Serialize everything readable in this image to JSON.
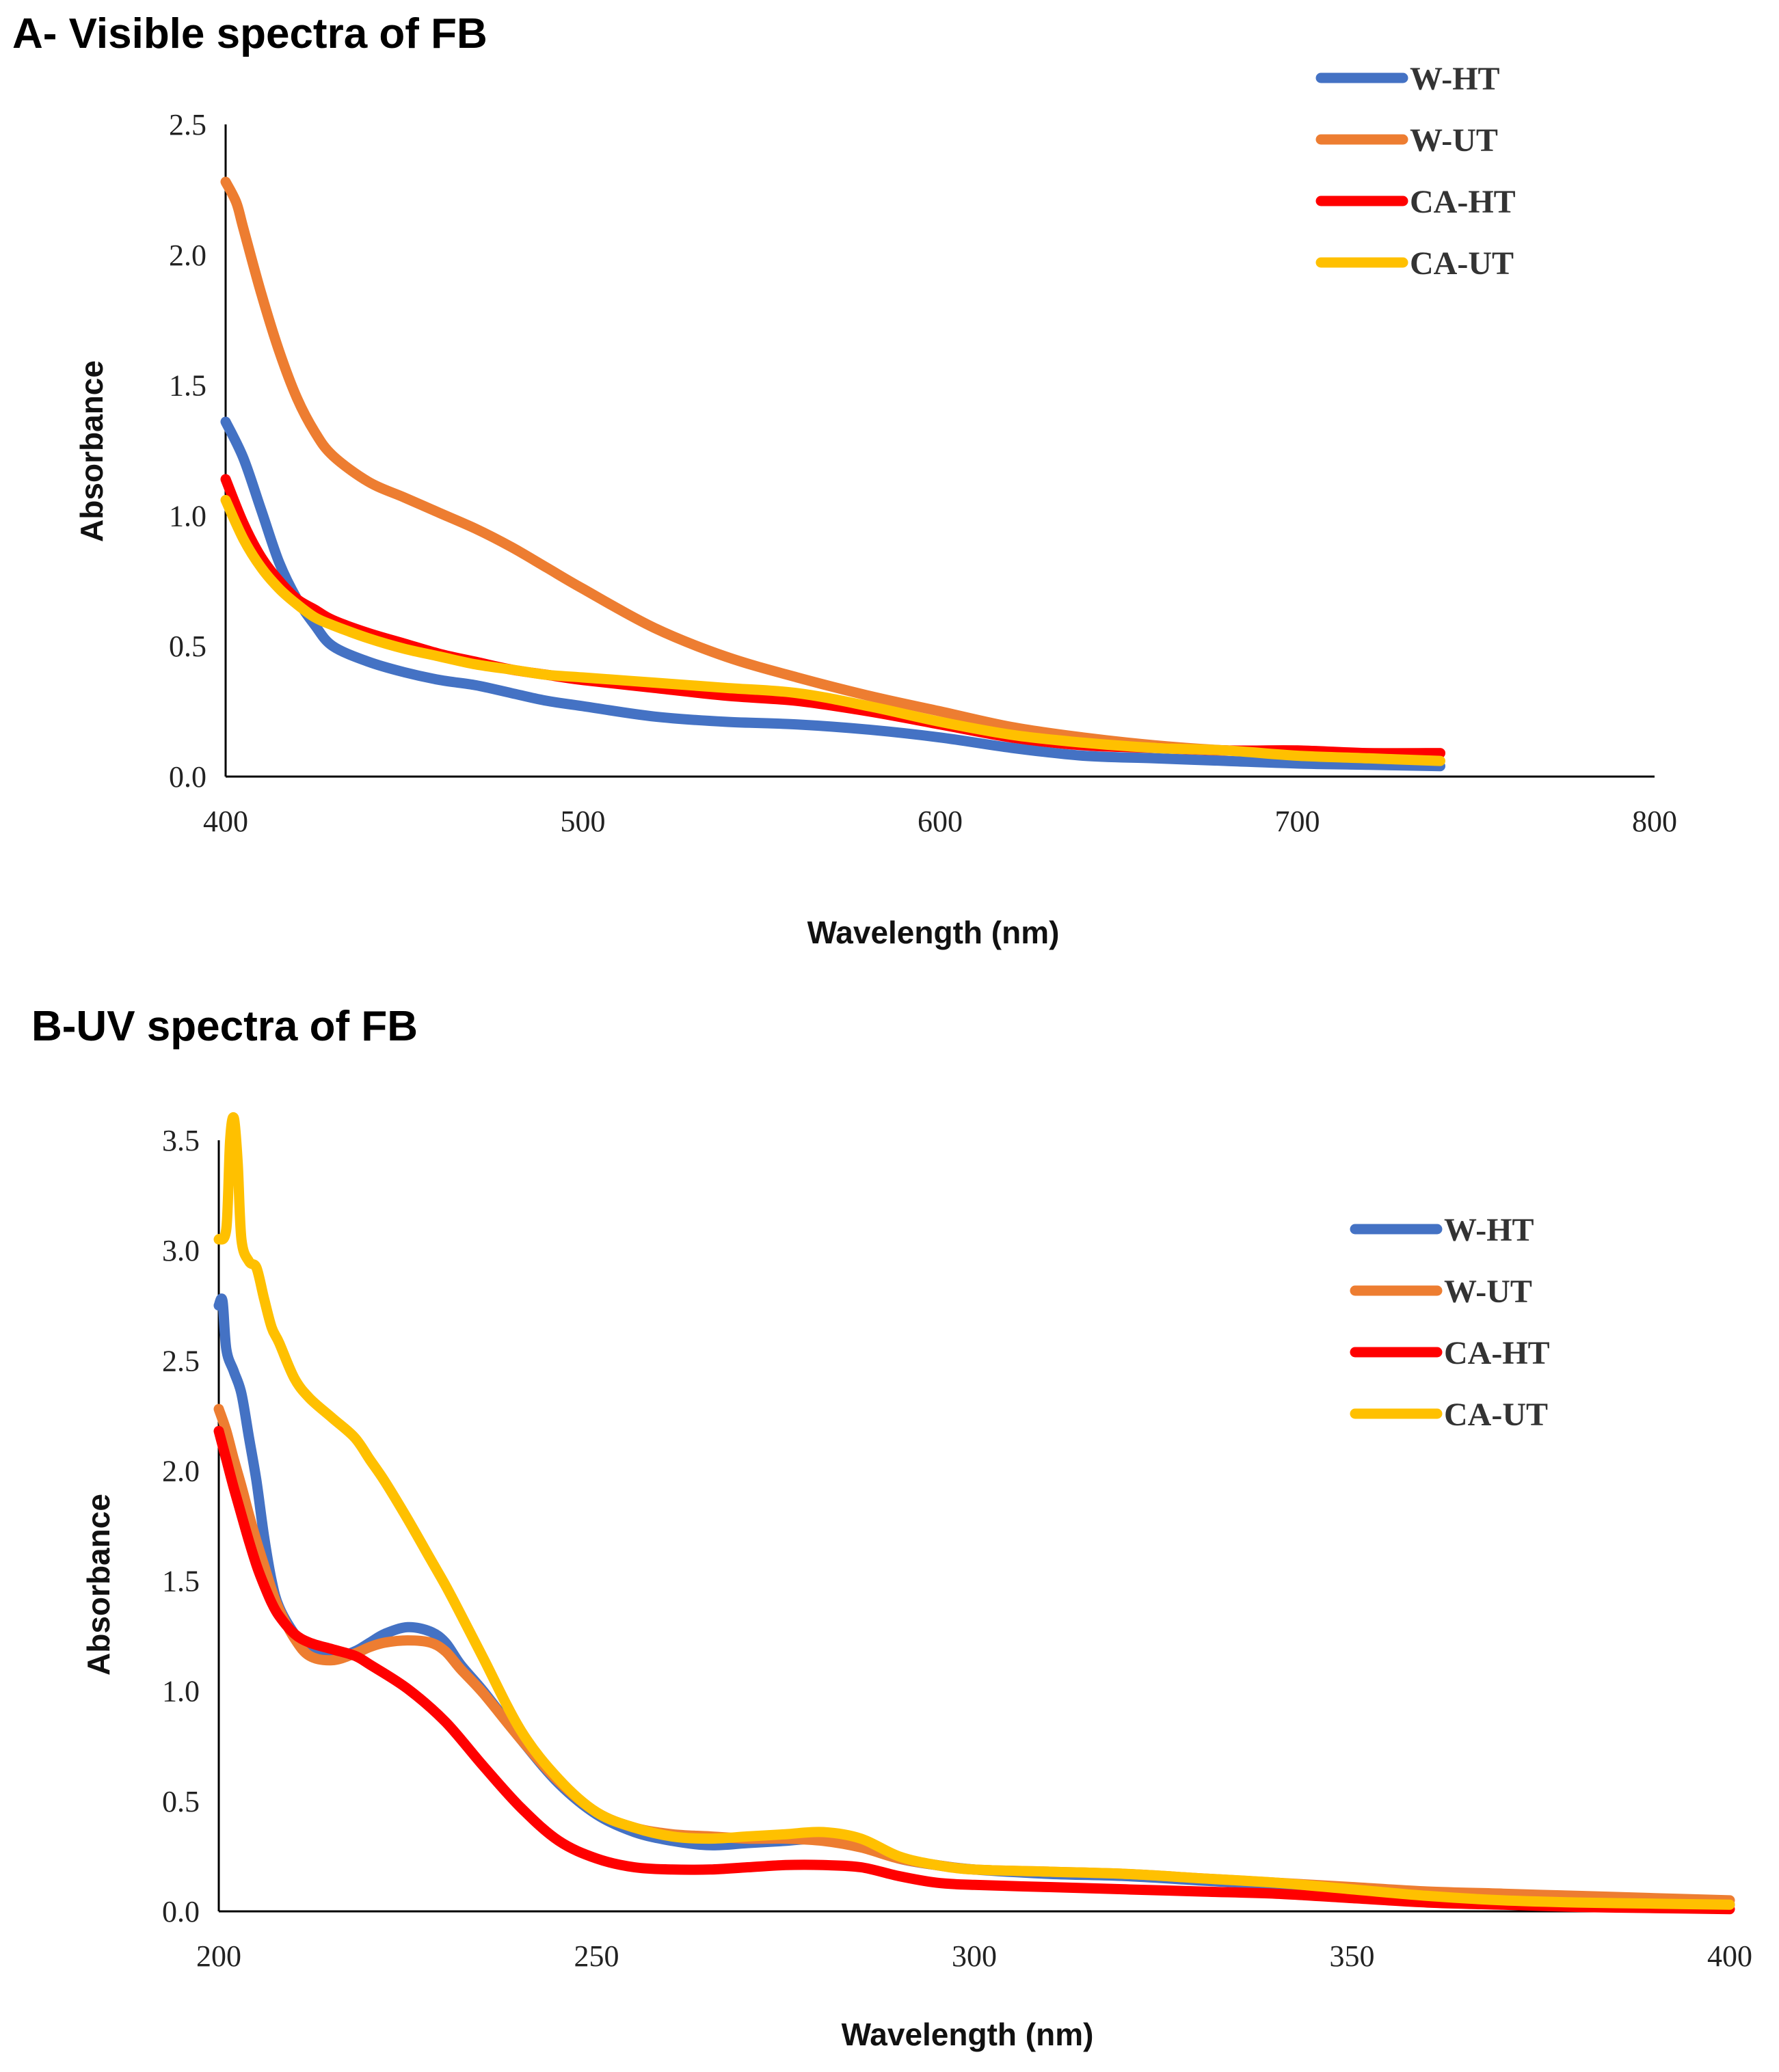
{
  "chart_data": [
    {
      "type": "line",
      "title": "A- Visible spectra of FB",
      "xlabel": "Wavelength (nm)",
      "ylabel": "Absorbance",
      "xlim": [
        400,
        800
      ],
      "ylim": [
        0,
        2.5
      ],
      "xticks": [
        "400",
        "500",
        "600",
        "700",
        "800"
      ],
      "yticks": [
        "0.0",
        "0.5",
        "1.0",
        "1.5",
        "2.0",
        "2.5"
      ],
      "xtick_values": [
        400,
        500,
        600,
        700,
        800
      ],
      "ytick_values": [
        0,
        0.5,
        1.0,
        1.5,
        2.0,
        2.5
      ],
      "grid": false,
      "legend_position": "top-right",
      "series": [
        {
          "name": "W-HT",
          "color": "#4472C4",
          "x": [
            400,
            405,
            410,
            415,
            420,
            425,
            430,
            440,
            450,
            460,
            470,
            480,
            490,
            500,
            520,
            540,
            560,
            580,
            600,
            620,
            640,
            660,
            680,
            700,
            720,
            740
          ],
          "y": [
            1.36,
            1.22,
            1.02,
            0.82,
            0.68,
            0.58,
            0.5,
            0.44,
            0.4,
            0.37,
            0.35,
            0.32,
            0.29,
            0.27,
            0.23,
            0.21,
            0.2,
            0.18,
            0.15,
            0.11,
            0.08,
            0.07,
            0.06,
            0.05,
            0.045,
            0.04
          ]
        },
        {
          "name": "W-UT",
          "color": "#ED7D31",
          "x": [
            400,
            403,
            405,
            410,
            415,
            420,
            425,
            430,
            440,
            450,
            460,
            470,
            480,
            490,
            500,
            520,
            540,
            560,
            580,
            600,
            620,
            640,
            660,
            680,
            700,
            720,
            740
          ],
          "y": [
            2.28,
            2.2,
            2.1,
            1.85,
            1.63,
            1.45,
            1.32,
            1.23,
            1.13,
            1.07,
            1.01,
            0.95,
            0.88,
            0.8,
            0.72,
            0.57,
            0.46,
            0.38,
            0.31,
            0.25,
            0.19,
            0.15,
            0.12,
            0.1,
            0.09,
            0.09,
            0.09
          ]
        },
        {
          "name": "CA-HT",
          "color": "#FF0000",
          "x": [
            400,
            405,
            410,
            415,
            420,
            425,
            430,
            440,
            450,
            460,
            470,
            480,
            490,
            500,
            520,
            540,
            560,
            580,
            600,
            620,
            640,
            660,
            680,
            700,
            720,
            740
          ],
          "y": [
            1.14,
            0.97,
            0.84,
            0.75,
            0.68,
            0.64,
            0.6,
            0.55,
            0.51,
            0.47,
            0.44,
            0.41,
            0.39,
            0.37,
            0.34,
            0.31,
            0.29,
            0.25,
            0.2,
            0.15,
            0.12,
            0.11,
            0.1,
            0.1,
            0.09,
            0.09
          ]
        },
        {
          "name": "CA-UT",
          "color": "#FFC000",
          "x": [
            400,
            405,
            410,
            415,
            420,
            425,
            430,
            440,
            450,
            460,
            470,
            480,
            490,
            500,
            520,
            540,
            560,
            580,
            600,
            620,
            640,
            660,
            680,
            700,
            720,
            740
          ],
          "y": [
            1.06,
            0.91,
            0.8,
            0.72,
            0.66,
            0.61,
            0.58,
            0.53,
            0.49,
            0.46,
            0.43,
            0.41,
            0.39,
            0.38,
            0.36,
            0.34,
            0.32,
            0.27,
            0.21,
            0.16,
            0.13,
            0.11,
            0.1,
            0.08,
            0.07,
            0.06
          ]
        }
      ]
    },
    {
      "type": "line",
      "title": "B-UV spectra of FB",
      "xlabel": "Wavelength (nm)",
      "ylabel": "Absorbance",
      "xlim": [
        200,
        400
      ],
      "ylim": [
        0,
        3.5
      ],
      "xticks": [
        "200",
        "250",
        "300",
        "350",
        "400"
      ],
      "yticks": [
        "0.0",
        "0.5",
        "1.0",
        "1.5",
        "2.0",
        "2.5",
        "3.0",
        "3.5"
      ],
      "xtick_values": [
        200,
        250,
        300,
        350,
        400
      ],
      "ytick_values": [
        0,
        0.5,
        1.0,
        1.5,
        2.0,
        2.5,
        3.0,
        3.5
      ],
      "grid": false,
      "legend_position": "top-right",
      "series": [
        {
          "name": "W-HT",
          "color": "#4472C4",
          "x": [
            200,
            200.5,
            201,
            202,
            203,
            204,
            205,
            206,
            207,
            208,
            210,
            212,
            215,
            218,
            220,
            222,
            225,
            228,
            230,
            232,
            235,
            240,
            245,
            250,
            255,
            260,
            265,
            270,
            275,
            280,
            285,
            290,
            295,
            300,
            310,
            320,
            330,
            340,
            350,
            360,
            370,
            380,
            390,
            400
          ],
          "y": [
            2.75,
            2.77,
            2.55,
            2.45,
            2.35,
            2.15,
            1.95,
            1.7,
            1.5,
            1.38,
            1.26,
            1.18,
            1.15,
            1.18,
            1.22,
            1.26,
            1.29,
            1.27,
            1.22,
            1.12,
            1.0,
            0.78,
            0.58,
            0.44,
            0.36,
            0.32,
            0.3,
            0.31,
            0.32,
            0.33,
            0.3,
            0.24,
            0.21,
            0.19,
            0.17,
            0.16,
            0.14,
            0.12,
            0.09,
            0.07,
            0.05,
            0.04,
            0.035,
            0.03
          ]
        },
        {
          "name": "W-UT",
          "color": "#ED7D31",
          "x": [
            200,
            201,
            202,
            203,
            204,
            205,
            206,
            207,
            208,
            210,
            212,
            215,
            218,
            220,
            222,
            225,
            228,
            230,
            232,
            235,
            240,
            245,
            250,
            255,
            260,
            265,
            270,
            275,
            280,
            285,
            290,
            295,
            300,
            310,
            320,
            330,
            340,
            350,
            360,
            370,
            380,
            390,
            400
          ],
          "y": [
            2.28,
            2.18,
            2.05,
            1.93,
            1.8,
            1.68,
            1.57,
            1.46,
            1.37,
            1.24,
            1.16,
            1.14,
            1.17,
            1.2,
            1.22,
            1.23,
            1.22,
            1.18,
            1.1,
            0.99,
            0.78,
            0.59,
            0.45,
            0.38,
            0.35,
            0.34,
            0.33,
            0.33,
            0.32,
            0.29,
            0.24,
            0.21,
            0.19,
            0.18,
            0.17,
            0.15,
            0.13,
            0.11,
            0.09,
            0.08,
            0.07,
            0.06,
            0.05
          ]
        },
        {
          "name": "CA-HT",
          "color": "#FF0000",
          "x": [
            200,
            201,
            202,
            203,
            204,
            205,
            206,
            207,
            208,
            210,
            212,
            215,
            218,
            220,
            225,
            230,
            235,
            240,
            245,
            250,
            255,
            260,
            265,
            270,
            275,
            280,
            285,
            290,
            295,
            300,
            310,
            320,
            330,
            340,
            350,
            360,
            370,
            380,
            390,
            400
          ],
          "y": [
            2.18,
            2.05,
            1.92,
            1.8,
            1.68,
            1.57,
            1.48,
            1.4,
            1.34,
            1.26,
            1.22,
            1.19,
            1.16,
            1.12,
            1.01,
            0.86,
            0.66,
            0.47,
            0.32,
            0.24,
            0.2,
            0.19,
            0.19,
            0.2,
            0.21,
            0.21,
            0.2,
            0.16,
            0.13,
            0.12,
            0.11,
            0.1,
            0.09,
            0.08,
            0.06,
            0.04,
            0.03,
            0.02,
            0.015,
            0.01
          ]
        },
        {
          "name": "CA-UT",
          "color": "#FFC000",
          "x": [
            200,
            201,
            201.5,
            202,
            202.5,
            203,
            204,
            205,
            206,
            207,
            208,
            210,
            212,
            215,
            218,
            220,
            222,
            225,
            228,
            230,
            232,
            235,
            240,
            245,
            250,
            255,
            260,
            265,
            270,
            275,
            280,
            285,
            290,
            295,
            300,
            310,
            320,
            330,
            340,
            350,
            360,
            370,
            380,
            390,
            400
          ],
          "y": [
            3.05,
            3.1,
            3.5,
            3.6,
            3.4,
            3.05,
            2.95,
            2.92,
            2.78,
            2.65,
            2.58,
            2.42,
            2.33,
            2.24,
            2.15,
            2.05,
            1.95,
            1.78,
            1.6,
            1.48,
            1.35,
            1.15,
            0.82,
            0.6,
            0.45,
            0.38,
            0.34,
            0.33,
            0.34,
            0.35,
            0.36,
            0.33,
            0.25,
            0.21,
            0.19,
            0.18,
            0.17,
            0.15,
            0.13,
            0.1,
            0.07,
            0.05,
            0.04,
            0.035,
            0.03
          ]
        }
      ]
    }
  ]
}
